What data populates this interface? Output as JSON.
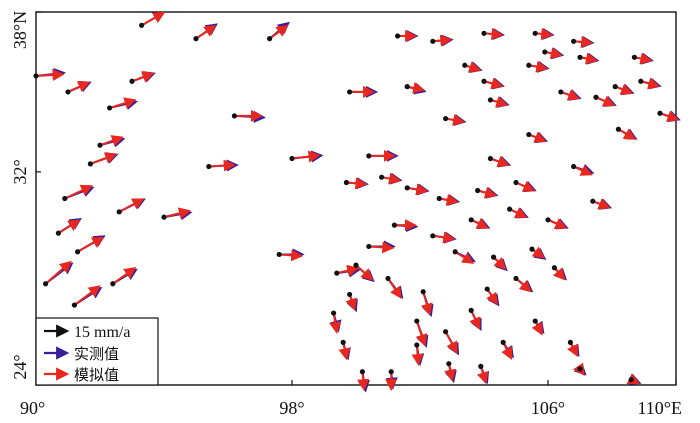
{
  "chart_data": {
    "type": "vector-field",
    "xlim": [
      90,
      110
    ],
    "ylim": [
      24,
      38
    ],
    "x_ticks": [
      {
        "value": 90,
        "label": "90°"
      },
      {
        "value": 98,
        "label": "98°"
      },
      {
        "value": 106,
        "label": "106°"
      },
      {
        "value": 110,
        "label": "110°E"
      }
    ],
    "y_ticks": [
      {
        "value": 24,
        "label": "24°"
      },
      {
        "value": 32,
        "label": "32°"
      },
      {
        "value": 38,
        "label": "38°N"
      }
    ],
    "velocity_scale_mm_per_a": 15,
    "legend": [
      {
        "label": "15 mm/a",
        "color": "#111111"
      },
      {
        "label": "实测值",
        "color": "#3a1f99"
      },
      {
        "label": "模拟值",
        "color": "#e8281e"
      }
    ],
    "colors": {
      "observed": "#3a1f99",
      "simulated": "#e8281e",
      "station": "#111111"
    },
    "vectors": [
      [
        93.3,
        37.5,
        14,
        8,
        14,
        8
      ],
      [
        95.0,
        37.0,
        13,
        9,
        12,
        8
      ],
      [
        97.3,
        37.0,
        12,
        10,
        11,
        8
      ],
      [
        90.0,
        35.6,
        18,
        2,
        17,
        1
      ],
      [
        93.0,
        35.4,
        14,
        5,
        13,
        5
      ],
      [
        91.0,
        35.0,
        14,
        6,
        13,
        6
      ],
      [
        92.3,
        34.4,
        17,
        4,
        16,
        5
      ],
      [
        96.2,
        34.1,
        19,
        -1,
        17,
        0
      ],
      [
        99.8,
        35.0,
        17,
        0,
        15,
        0
      ],
      [
        92.0,
        33.0,
        15,
        4,
        14,
        5
      ],
      [
        91.7,
        32.3,
        17,
        6,
        16,
        6
      ],
      [
        90.9,
        31.0,
        18,
        7,
        17,
        8
      ],
      [
        95.4,
        32.2,
        18,
        1,
        16,
        1
      ],
      [
        98.0,
        32.5,
        19,
        2,
        17,
        2
      ],
      [
        100.4,
        32.6,
        18,
        0,
        16,
        0
      ],
      [
        92.6,
        30.5,
        16,
        8,
        15,
        8
      ],
      [
        94.0,
        30.3,
        17,
        3,
        16,
        4
      ],
      [
        90.7,
        29.7,
        14,
        9,
        13,
        8
      ],
      [
        91.3,
        29.0,
        17,
        10,
        16,
        9
      ],
      [
        90.3,
        27.8,
        17,
        13,
        16,
        14
      ],
      [
        91.2,
        27.0,
        17,
        11,
        16,
        12
      ],
      [
        92.4,
        27.8,
        15,
        9,
        14,
        10
      ],
      [
        97.6,
        28.9,
        15,
        0,
        14,
        -1
      ],
      [
        99.4,
        28.2,
        14,
        2,
        13,
        3
      ],
      [
        100.4,
        29.2,
        16,
        0,
        15,
        -1
      ],
      [
        101.2,
        30.0,
        14,
        -1,
        13,
        0
      ],
      [
        102.4,
        29.6,
        14,
        -2,
        13,
        -2
      ],
      [
        103.1,
        29.0,
        12,
        -6,
        11,
        -7
      ],
      [
        100.0,
        28.5,
        11,
        -10,
        10,
        -9
      ],
      [
        101.0,
        28.0,
        9,
        -12,
        8,
        -12
      ],
      [
        102.1,
        27.5,
        5,
        -15,
        4,
        -14
      ],
      [
        101.9,
        26.4,
        6,
        -16,
        5,
        -15
      ],
      [
        102.8,
        26.0,
        8,
        -14,
        7,
        -13
      ],
      [
        103.6,
        26.8,
        6,
        -12,
        5,
        -11
      ],
      [
        104.1,
        27.6,
        7,
        -10,
        6,
        -9
      ],
      [
        104.3,
        28.8,
        8,
        -8,
        7,
        -7
      ],
      [
        105.0,
        28.0,
        10,
        -8,
        9,
        -8
      ],
      [
        105.5,
        29.1,
        8,
        -6,
        7,
        -5
      ],
      [
        106.2,
        28.4,
        7,
        -7,
        6,
        -7
      ],
      [
        104.6,
        25.6,
        6,
        -9,
        5,
        -10
      ],
      [
        103.9,
        24.7,
        4,
        -10,
        3,
        -10
      ],
      [
        102.9,
        24.8,
        3,
        -11,
        2,
        -10
      ],
      [
        101.9,
        25.5,
        2,
        -12,
        1,
        -12
      ],
      [
        101.1,
        24.5,
        1,
        -10,
        0,
        -11
      ],
      [
        100.2,
        24.5,
        2,
        -12,
        1,
        -11
      ],
      [
        99.6,
        25.6,
        3,
        -10,
        2,
        -10
      ],
      [
        99.3,
        26.7,
        3,
        -11,
        2,
        -12
      ],
      [
        99.8,
        27.4,
        4,
        -10,
        3,
        -9
      ],
      [
        105.6,
        26.4,
        5,
        -7,
        4,
        -8
      ],
      [
        106.7,
        25.6,
        5,
        -8,
        4,
        -8
      ],
      [
        107.0,
        24.6,
        3,
        -3,
        2,
        -3
      ],
      [
        108.6,
        24.2,
        5,
        -2,
        4,
        -2
      ],
      [
        101.6,
        35.2,
        11,
        -3,
        10,
        -2
      ],
      [
        102.8,
        34.0,
        12,
        -2,
        11,
        -2
      ],
      [
        104.2,
        34.7,
        11,
        -3,
        10,
        -3
      ],
      [
        105.4,
        33.4,
        11,
        -4,
        10,
        -4
      ],
      [
        106.8,
        32.2,
        12,
        -4,
        11,
        -5
      ],
      [
        107.5,
        34.8,
        12,
        -5,
        11,
        -5
      ],
      [
        108.2,
        33.6,
        11,
        -6,
        10,
        -6
      ],
      [
        108.9,
        35.4,
        12,
        -3,
        11,
        -3
      ],
      [
        109.5,
        34.2,
        12,
        -4,
        11,
        -4
      ],
      [
        107.0,
        36.3,
        11,
        -2,
        10,
        -2
      ],
      [
        108.7,
        36.3,
        11,
        -2,
        10,
        -2
      ],
      [
        103.4,
        36.0,
        10,
        -3,
        9,
        -3
      ],
      [
        104.0,
        37.2,
        12,
        -1,
        11,
        -1
      ],
      [
        101.3,
        37.1,
        12,
        0,
        11,
        0
      ],
      [
        102.4,
        36.9,
        12,
        1,
        11,
        1
      ],
      [
        105.6,
        37.2,
        11,
        -1,
        10,
        -1
      ],
      [
        105.4,
        36.0,
        12,
        -2,
        11,
        -2
      ],
      [
        106.4,
        35.0,
        12,
        -4,
        11,
        -4
      ],
      [
        104.2,
        32.5,
        12,
        -4,
        11,
        -4
      ],
      [
        105.0,
        31.6,
        12,
        -5,
        11,
        -5
      ],
      [
        103.8,
        31.3,
        12,
        -3,
        11,
        -3
      ],
      [
        102.6,
        31.0,
        12,
        -2,
        11,
        -2
      ],
      [
        101.6,
        31.4,
        13,
        -2,
        12,
        -2
      ],
      [
        99.7,
        31.6,
        13,
        -1,
        12,
        -1
      ],
      [
        100.8,
        31.8,
        12,
        -2,
        11,
        -2
      ],
      [
        106.0,
        30.2,
        12,
        -5,
        11,
        -5
      ],
      [
        107.4,
        30.9,
        11,
        -4,
        10,
        -4
      ],
      [
        103.6,
        30.2,
        11,
        -5,
        10,
        -5
      ],
      [
        104.8,
        30.6,
        11,
        -5,
        10,
        -5
      ],
      [
        104.0,
        35.4,
        12,
        -3,
        11,
        -3
      ],
      [
        105.9,
        36.5,
        11,
        -2,
        10,
        -2
      ],
      [
        106.8,
        36.9,
        12,
        -1,
        11,
        -1
      ],
      [
        108.1,
        35.2,
        11,
        -4,
        10,
        -4
      ]
    ]
  }
}
